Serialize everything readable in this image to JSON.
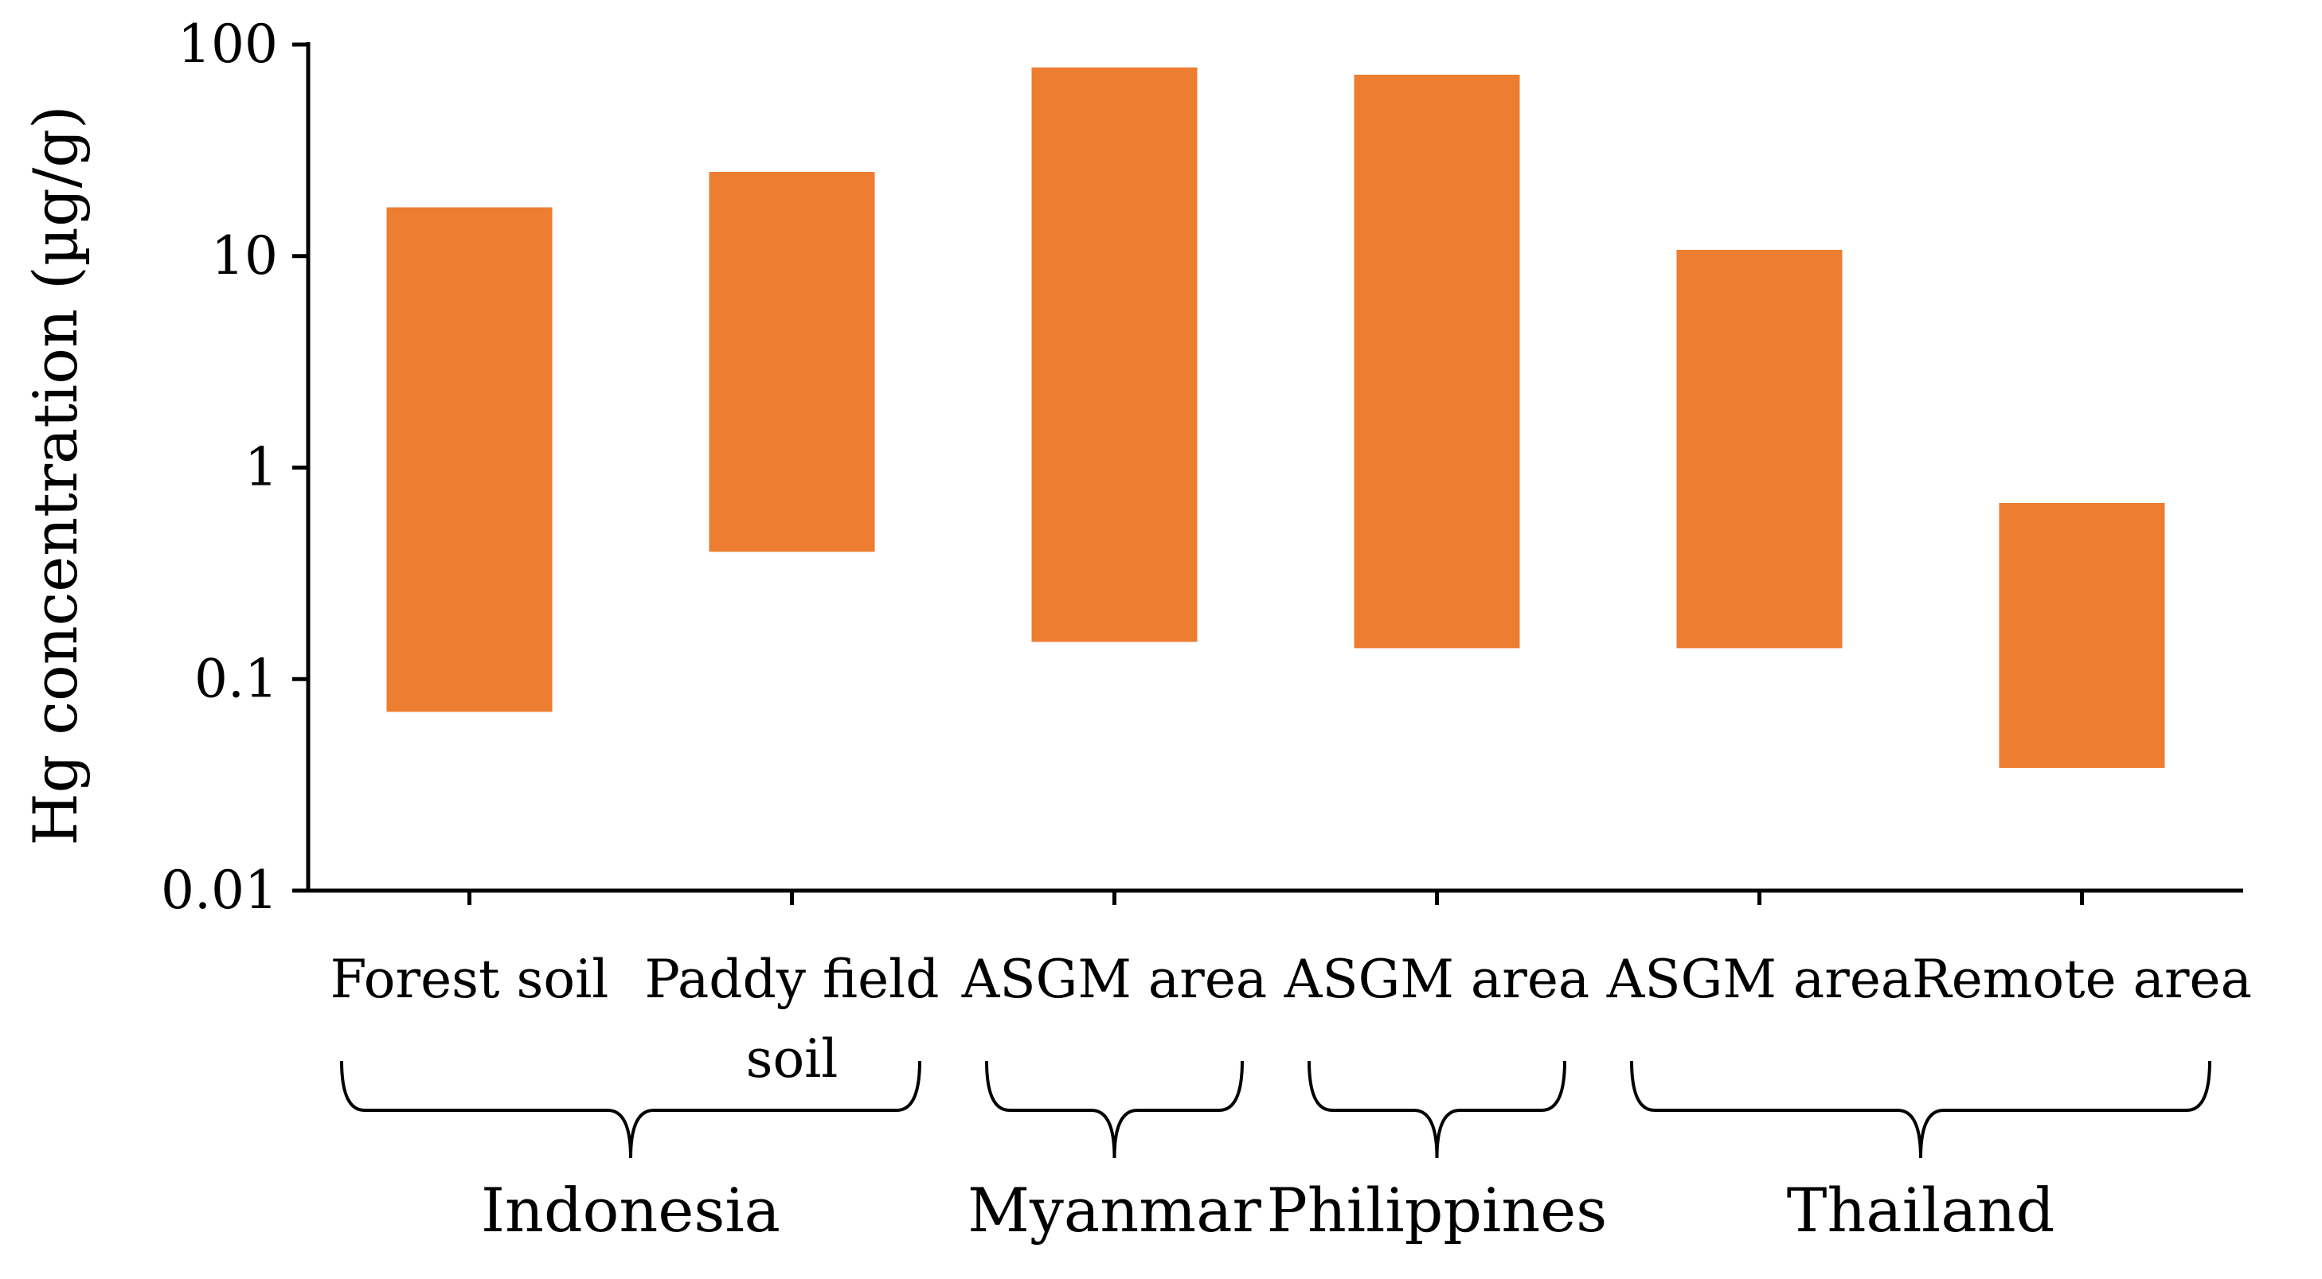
{
  "chart_data": {
    "type": "bar",
    "subtype": "floating-range",
    "scale": "log",
    "ylabel": "Hg concentration (µg/g)",
    "xlabel": "",
    "ylim": [
      0.01,
      100
    ],
    "yticks": [
      "0.01",
      "0.1",
      "1",
      "10",
      "100"
    ],
    "categories": [
      {
        "lines": [
          "Forest soil"
        ],
        "group": "Indonesia"
      },
      {
        "lines": [
          "Paddy field",
          "soil"
        ],
        "group": "Indonesia"
      },
      {
        "lines": [
          "ASGM area"
        ],
        "group": "Myanmar"
      },
      {
        "lines": [
          "ASGM area"
        ],
        "group": "Philippines"
      },
      {
        "lines": [
          "ASGM area"
        ],
        "group": "Thailand"
      },
      {
        "lines": [
          "Remote area"
        ],
        "group": "Thailand"
      }
    ],
    "series": [
      {
        "ranges": [
          {
            "low": 0.07,
            "high": 17
          },
          {
            "low": 0.4,
            "high": 25
          },
          {
            "low": 0.15,
            "high": 78
          },
          {
            "low": 0.14,
            "high": 72
          },
          {
            "low": 0.14,
            "high": 10.7
          },
          {
            "low": 0.038,
            "high": 0.68
          }
        ]
      }
    ],
    "groups": [
      {
        "label": "Indonesia",
        "categories": [
          0,
          1
        ]
      },
      {
        "label": "Myanmar",
        "categories": [
          2
        ]
      },
      {
        "label": "Philippines",
        "categories": [
          3
        ]
      },
      {
        "label": "Thailand",
        "categories": [
          4,
          5
        ]
      }
    ],
    "grid": false,
    "legend": "none",
    "colors": {
      "bar": "#ED7D31",
      "axis": "#000000"
    }
  }
}
